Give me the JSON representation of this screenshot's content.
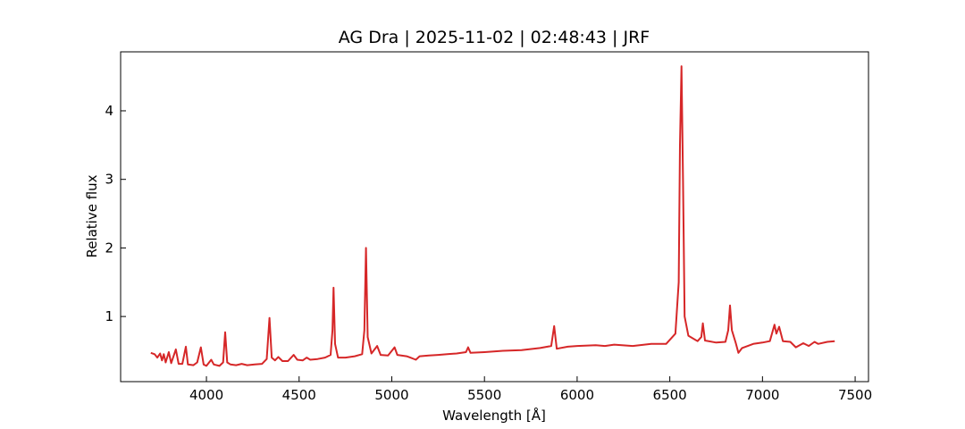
{
  "chart_data": {
    "type": "line",
    "title": "AG Dra | 2025-11-02 | 02:48:43 | JRF",
    "xlabel": "Wavelength [Å]",
    "ylabel": "Relative flux",
    "xlim": [
      3537,
      7572
    ],
    "ylim": [
      0.05,
      4.86
    ],
    "xticks": [
      4000,
      4500,
      5000,
      5500,
      6000,
      6500,
      7000,
      7500
    ],
    "yticks": [
      1,
      2,
      3,
      4
    ],
    "series": [
      {
        "color": "#d62728",
        "x": [
          3700,
          3720,
          3735,
          3750,
          3760,
          3770,
          3780,
          3797,
          3810,
          3835,
          3850,
          3870,
          3889,
          3900,
          3930,
          3950,
          3970,
          3985,
          4000,
          4026,
          4040,
          4070,
          4090,
          4101,
          4112,
          4130,
          4160,
          4190,
          4220,
          4260,
          4300,
          4325,
          4340,
          4352,
          4370,
          4388,
          4410,
          4440,
          4471,
          4490,
          4520,
          4541,
          4560,
          4600,
          4640,
          4670,
          4680,
          4686,
          4694,
          4710,
          4750,
          4800,
          4840,
          4852,
          4861,
          4870,
          4890,
          4921,
          4940,
          4980,
          5015,
          5030,
          5080,
          5100,
          5130,
          5150,
          5200,
          5250,
          5300,
          5350,
          5400,
          5412,
          5425,
          5500,
          5600,
          5700,
          5800,
          5860,
          5876,
          5890,
          5950,
          6000,
          6100,
          6150,
          6200,
          6300,
          6400,
          6480,
          6530,
          6548,
          6555,
          6563,
          6571,
          6580,
          6600,
          6650,
          6670,
          6678,
          6690,
          6750,
          6800,
          6815,
          6825,
          6835,
          6855,
          6870,
          6890,
          6950,
          7000,
          7040,
          7065,
          7075,
          7090,
          7110,
          7150,
          7180,
          7220,
          7250,
          7281,
          7300,
          7350,
          7390
        ],
        "values": [
          0.47,
          0.45,
          0.4,
          0.46,
          0.36,
          0.45,
          0.33,
          0.48,
          0.32,
          0.52,
          0.31,
          0.31,
          0.56,
          0.3,
          0.29,
          0.33,
          0.55,
          0.3,
          0.28,
          0.37,
          0.3,
          0.28,
          0.33,
          0.77,
          0.33,
          0.3,
          0.29,
          0.31,
          0.29,
          0.3,
          0.31,
          0.38,
          0.98,
          0.4,
          0.36,
          0.41,
          0.35,
          0.35,
          0.44,
          0.37,
          0.36,
          0.4,
          0.37,
          0.38,
          0.4,
          0.44,
          0.8,
          1.42,
          0.6,
          0.4,
          0.4,
          0.42,
          0.45,
          0.8,
          2.0,
          0.7,
          0.46,
          0.57,
          0.44,
          0.43,
          0.55,
          0.44,
          0.42,
          0.4,
          0.37,
          0.42,
          0.43,
          0.44,
          0.45,
          0.46,
          0.48,
          0.55,
          0.47,
          0.48,
          0.5,
          0.51,
          0.54,
          0.57,
          0.86,
          0.53,
          0.56,
          0.57,
          0.58,
          0.57,
          0.59,
          0.57,
          0.6,
          0.6,
          0.75,
          1.5,
          3.5,
          4.65,
          3.0,
          1.0,
          0.72,
          0.64,
          0.7,
          0.9,
          0.65,
          0.62,
          0.63,
          0.8,
          1.16,
          0.8,
          0.62,
          0.47,
          0.54,
          0.6,
          0.62,
          0.64,
          0.88,
          0.75,
          0.85,
          0.64,
          0.63,
          0.55,
          0.61,
          0.57,
          0.63,
          0.6,
          0.63,
          0.64
        ]
      }
    ]
  }
}
